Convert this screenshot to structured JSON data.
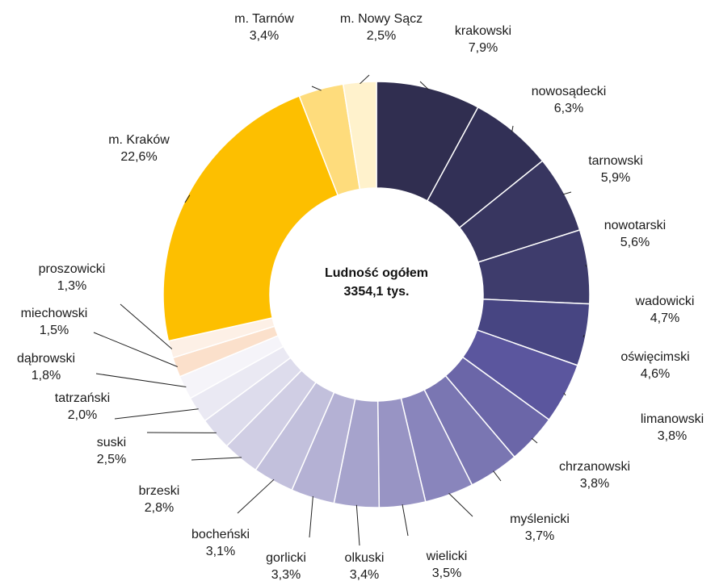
{
  "chart_data": {
    "type": "pie",
    "center_label": [
      "Ludność ogółem",
      "3354,1 tys."
    ],
    "slices": [
      {
        "name": "krakowski",
        "value": 7.9,
        "label": "7,9%",
        "color": "#302e50"
      },
      {
        "name": "nowosądecki",
        "value": 6.3,
        "label": "6,3%",
        "color": "#323056"
      },
      {
        "name": "tarnowski",
        "value": 5.9,
        "label": "5,9%",
        "color": "#383660"
      },
      {
        "name": "nowotarski",
        "value": 5.6,
        "label": "5,6%",
        "color": "#3e3c6c"
      },
      {
        "name": "wadowicki",
        "value": 4.7,
        "label": "4,7%",
        "color": "#474582"
      },
      {
        "name": "oświęcimski",
        "value": 4.6,
        "label": "4,6%",
        "color": "#5b569e"
      },
      {
        "name": "limanowski",
        "value": 3.8,
        "label": "3,8%",
        "color": "#6b66a8"
      },
      {
        "name": "chrzanowski",
        "value": 3.8,
        "label": "3,8%",
        "color": "#7a76b2"
      },
      {
        "name": "myślenicki",
        "value": 3.7,
        "label": "3,7%",
        "color": "#8985bc"
      },
      {
        "name": "wielicki",
        "value": 3.5,
        "label": "3,5%",
        "color": "#9894c4"
      },
      {
        "name": "olkuski",
        "value": 3.4,
        "label": "3,4%",
        "color": "#a6a3cc"
      },
      {
        "name": "gorlicki",
        "value": 3.3,
        "label": "3,3%",
        "color": "#b4b1d4"
      },
      {
        "name": "bocheński",
        "value": 3.1,
        "label": "3,1%",
        "color": "#c2c0dc"
      },
      {
        "name": "brzeski",
        "value": 2.8,
        "label": "2,8%",
        "color": "#d0cee4"
      },
      {
        "name": "suski",
        "value": 2.5,
        "label": "2,5%",
        "color": "#dddcec"
      },
      {
        "name": "tatrzański",
        "value": 2.0,
        "label": "2,0%",
        "color": "#eae9f3"
      },
      {
        "name": "dąbrowski",
        "value": 1.8,
        "label": "1,8%",
        "color": "#f5f4f9"
      },
      {
        "name": "miechowski",
        "value": 1.5,
        "label": "1,5%",
        "color": "#fbe0cb"
      },
      {
        "name": "proszowicki",
        "value": 1.3,
        "label": "1,3%",
        "color": "#fdf0e6"
      },
      {
        "name": "m. Kraków",
        "value": 22.6,
        "label": "22,6%",
        "color": "#fdbf00"
      },
      {
        "name": "m. Tarnów",
        "value": 3.4,
        "label": "3,4%",
        "color": "#fedc7c"
      },
      {
        "name": "m. Nowy Sącz",
        "value": 2.5,
        "label": "2,5%",
        "color": "#fff2cc"
      }
    ]
  }
}
